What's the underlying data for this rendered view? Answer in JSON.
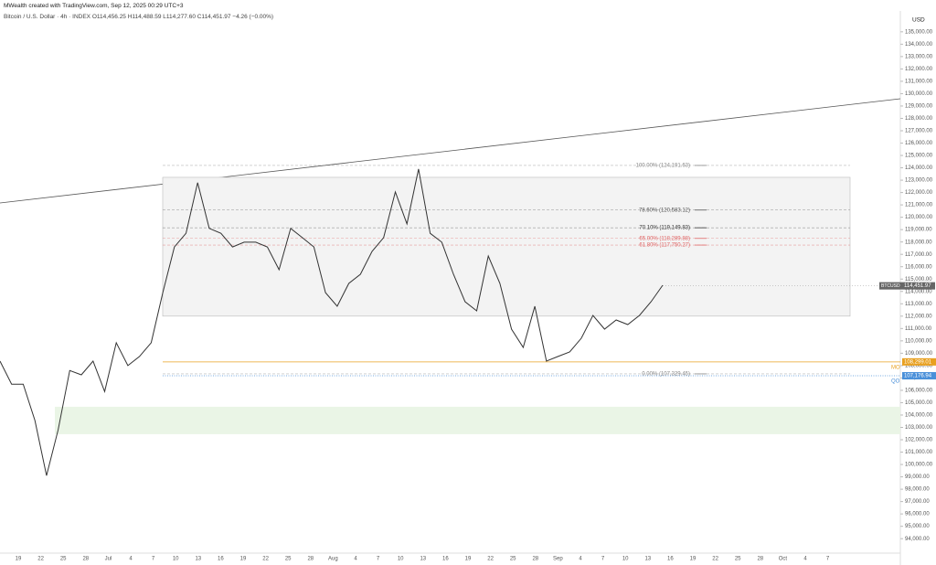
{
  "header": {
    "credit": "MWealth created with TradingView.com, Sep 12, 2025 00:29 UTC+3",
    "symbol": "Bitcoin / U.S. Dollar · 4h · INDEX",
    "ohlc": "O114,456.25 H114,488.59 L114,277.60 C114,451.97 −4.26 (−0.00%)"
  },
  "chart_data": {
    "type": "line",
    "currency": "USD",
    "series": [
      {
        "name": "BTCUSD",
        "color": "#333333",
        "values": [
          108360,
          106500,
          106500,
          103560,
          99100,
          102800,
          107600,
          107250,
          108360,
          105900,
          109850,
          108000,
          108740,
          109850,
          113900,
          117600,
          118700,
          122800,
          119100,
          118700,
          117600,
          117980,
          117980,
          117600,
          115760,
          119100,
          118350,
          117600,
          113900,
          112800,
          114650,
          115390,
          117240,
          118350,
          122050,
          119460,
          123900,
          118700,
          117980,
          115390,
          113170,
          112430,
          116870,
          114650,
          110950,
          109470,
          112800,
          108360,
          108740,
          109100,
          110220,
          112060,
          110950,
          111690,
          111320,
          112060,
          113170,
          114500
        ]
      }
    ],
    "last_price": {
      "value": 114451.97,
      "label": "114,451.97"
    },
    "ylim": [
      92830,
      136540
    ],
    "yticks": [
      {
        "value": 94000,
        "label": "94,000.00"
      },
      {
        "value": 95000,
        "label": "95,000.00"
      },
      {
        "value": 96000,
        "label": "96,000.00"
      },
      {
        "value": 97000,
        "label": "97,000.00"
      },
      {
        "value": 98000,
        "label": "98,000.00"
      },
      {
        "value": 99000,
        "label": "99,000.00"
      },
      {
        "value": 100000,
        "label": "100,000.00"
      },
      {
        "value": 101000,
        "label": "101,000.00"
      },
      {
        "value": 102000,
        "label": "102,000.00"
      },
      {
        "value": 103000,
        "label": "103,000.00"
      },
      {
        "value": 104000,
        "label": "104,000.00"
      },
      {
        "value": 105000,
        "label": "105,000.00"
      },
      {
        "value": 106000,
        "label": "106,000.00"
      },
      {
        "value": 107000,
        "label": "107,000.00"
      },
      {
        "value": 108000,
        "label": "108,000.00"
      },
      {
        "value": 109000,
        "label": "109,000.00"
      },
      {
        "value": 110000,
        "label": "110,000.00"
      },
      {
        "value": 111000,
        "label": "111,000.00"
      },
      {
        "value": 112000,
        "label": "112,000.00"
      },
      {
        "value": 113000,
        "label": "113,000.00"
      },
      {
        "value": 114000,
        "label": "114,000.00"
      },
      {
        "value": 115000,
        "label": "115,000.00"
      },
      {
        "value": 116000,
        "label": "116,000.00"
      },
      {
        "value": 117000,
        "label": "117,000.00"
      },
      {
        "value": 118000,
        "label": "118,000.00"
      },
      {
        "value": 119000,
        "label": "119,000.00"
      },
      {
        "value": 120000,
        "label": "120,000.00"
      },
      {
        "value": 121000,
        "label": "121,000.00"
      },
      {
        "value": 122000,
        "label": "122,000.00"
      },
      {
        "value": 123000,
        "label": "123,000.00"
      },
      {
        "value": 124000,
        "label": "124,000.00"
      },
      {
        "value": 125000,
        "label": "125,000.00"
      },
      {
        "value": 126000,
        "label": "126,000.00"
      },
      {
        "value": 127000,
        "label": "127,000.00"
      },
      {
        "value": 128000,
        "label": "128,000.00"
      },
      {
        "value": 129000,
        "label": "129,000.00"
      },
      {
        "value": 130000,
        "label": "130,000.00"
      },
      {
        "value": 131000,
        "label": "131,000.00"
      },
      {
        "value": 132000,
        "label": "132,000.00"
      },
      {
        "value": 133000,
        "label": "133,000.00"
      },
      {
        "value": 134000,
        "label": "134,000.00"
      },
      {
        "value": 135000,
        "label": "135,000.00"
      }
    ],
    "x_labels": [
      "19",
      "22",
      "25",
      "28",
      "Jul",
      "4",
      "7",
      "10",
      "13",
      "16",
      "19",
      "22",
      "25",
      "28",
      "Aug",
      "4",
      "7",
      "10",
      "13",
      "16",
      "19",
      "22",
      "25",
      "28",
      "Sep",
      "4",
      "7",
      "10",
      "13",
      "16",
      "19",
      "22",
      "25",
      "28",
      "Oct",
      "4",
      "7"
    ],
    "range_box": {
      "top": 123230,
      "bottom": 112000
    },
    "demand_zone": {
      "top": 104670,
      "bottom": 102450
    },
    "fib_levels": [
      {
        "label": "100.00% (124,191.63)",
        "value": 124191.63,
        "color": "#888888"
      },
      {
        "label": "78.60% (120,583.12)",
        "value": 120583.12,
        "color": "#555555"
      },
      {
        "label": "70.10% (119,149.83)",
        "value": 119149.83,
        "color": "#333333"
      },
      {
        "label": "65.00% (118,289.88)",
        "value": 118289.88,
        "color": "#e06666"
      },
      {
        "label": "61.80% (117,750.27)",
        "value": 117750.27,
        "color": "#e06666"
      },
      {
        "label": "0.00% (107,329.45)",
        "value": 107329.45,
        "color": "#888888"
      }
    ],
    "price_lines": [
      {
        "name": "MO",
        "label": "108,299.01",
        "value": 108299.01,
        "color": "#e8a020"
      },
      {
        "name": "QO",
        "label": "107,176.94",
        "value": 107176.94,
        "color": "#4a90d9"
      }
    ]
  }
}
